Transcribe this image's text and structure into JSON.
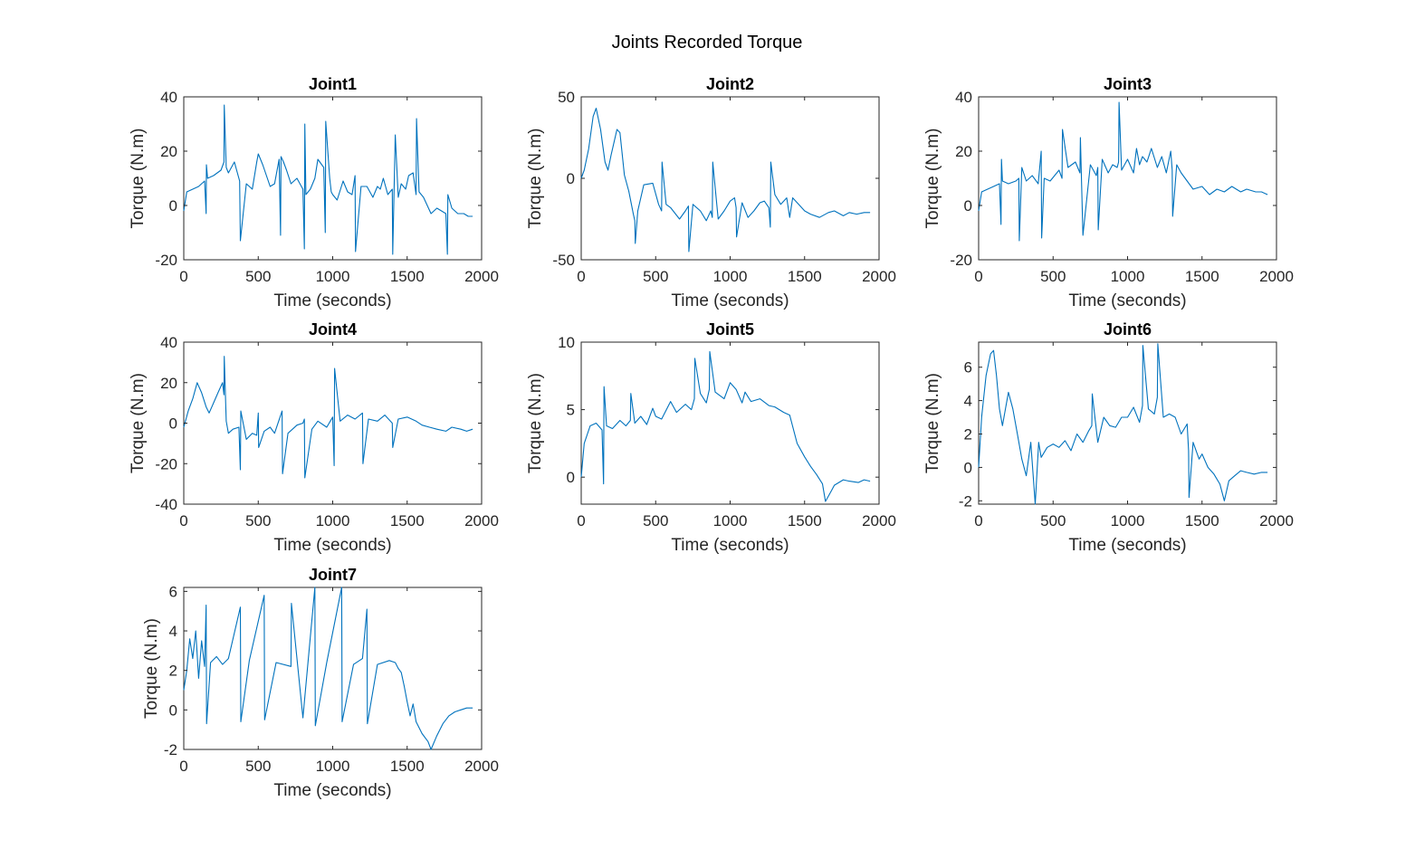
{
  "figure": {
    "title": "Joints Recorded Torque",
    "trace_color": "#0072bd",
    "axis_color": "#262626"
  },
  "chart_data": [
    {
      "type": "line",
      "title": "Joint1",
      "xlabel": "Time (seconds)",
      "ylabel": "Torque (N.m)",
      "xlim": [
        0,
        2000
      ],
      "ylim": [
        -20,
        40
      ],
      "xticks": [
        0,
        500,
        1000,
        1500,
        2000
      ],
      "yticks": [
        -20,
        0,
        20,
        40
      ],
      "series": [
        {
          "x": [
            0,
            20,
            60,
            100,
            140,
            150,
            152,
            160,
            200,
            250,
            270,
            272,
            285,
            300,
            340,
            375,
            380,
            420,
            460,
            490,
            500,
            530,
            580,
            610,
            640,
            650,
            653,
            670,
            690,
            720,
            760,
            800,
            810,
            813,
            820,
            850,
            880,
            900,
            940,
            950,
            953,
            980,
            990,
            1000,
            1030,
            1070,
            1100,
            1130,
            1150,
            1153,
            1190,
            1230,
            1270,
            1300,
            1320,
            1340,
            1370,
            1400,
            1403,
            1420,
            1440,
            1460,
            1490,
            1510,
            1540,
            1560,
            1563,
            1580,
            1610,
            1660,
            1700,
            1730,
            1760,
            1770,
            1773,
            1800,
            1840,
            1880,
            1910,
            1940
          ],
          "y": [
            -2,
            5,
            6,
            7,
            9,
            -3,
            15,
            10,
            11,
            13,
            16,
            37,
            14,
            12,
            16,
            9,
            -13,
            8,
            6,
            16,
            19,
            15,
            7,
            8,
            17,
            -11,
            18,
            16,
            13,
            8,
            10,
            6,
            -16,
            30,
            4,
            6,
            10,
            17,
            14,
            -10,
            31,
            10,
            5,
            4,
            2,
            9,
            5,
            4,
            11,
            -17,
            7,
            7,
            3,
            7,
            6,
            10,
            4,
            6,
            -18,
            26,
            3,
            8,
            6,
            11,
            12,
            4,
            32,
            5,
            3,
            -3,
            -1,
            -2,
            -3,
            -18,
            4,
            -1,
            -3,
            -3,
            -4,
            -4
          ]
        }
      ]
    },
    {
      "type": "line",
      "title": "Joint2",
      "xlabel": "Time (seconds)",
      "ylabel": "Torque (N.m)",
      "xlim": [
        0,
        2000
      ],
      "ylim": [
        -50,
        50
      ],
      "xticks": [
        0,
        500,
        1000,
        1500,
        2000
      ],
      "yticks": [
        -50,
        0,
        50
      ],
      "series": [
        {
          "x": [
            0,
            20,
            50,
            80,
            100,
            130,
            160,
            180,
            200,
            240,
            260,
            290,
            320,
            350,
            360,
            363,
            380,
            420,
            480,
            520,
            540,
            543,
            570,
            600,
            660,
            700,
            720,
            723,
            750,
            800,
            840,
            870,
            880,
            883,
            920,
            960,
            1000,
            1030,
            1040,
            1043,
            1080,
            1120,
            1160,
            1200,
            1230,
            1260,
            1270,
            1273,
            1300,
            1340,
            1380,
            1400,
            1420,
            1460,
            1500,
            1540,
            1600,
            1660,
            1700,
            1760,
            1800,
            1850,
            1900,
            1940
          ],
          "y": [
            0,
            5,
            18,
            38,
            43,
            30,
            10,
            5,
            14,
            30,
            28,
            2,
            -8,
            -22,
            -26,
            -40,
            -20,
            -4,
            -3,
            -16,
            -20,
            10,
            -16,
            -18,
            -25,
            -20,
            -17,
            -45,
            -16,
            -20,
            -26,
            -20,
            -24,
            10,
            -25,
            -20,
            -14,
            -12,
            -18,
            -36,
            -15,
            -24,
            -20,
            -15,
            -14,
            -18,
            -30,
            10,
            -10,
            -16,
            -12,
            -24,
            -12,
            -16,
            -20,
            -22,
            -24,
            -21,
            -20,
            -23,
            -21,
            -22,
            -21,
            -21
          ]
        }
      ]
    },
    {
      "type": "line",
      "title": "Joint3",
      "xlabel": "Time (seconds)",
      "ylabel": "Torque (N.m)",
      "xlim": [
        0,
        2000
      ],
      "ylim": [
        -20,
        40
      ],
      "xticks": [
        0,
        500,
        1000,
        1500,
        2000
      ],
      "yticks": [
        -20,
        0,
        20,
        40
      ],
      "series": [
        {
          "x": [
            0,
            20,
            60,
            100,
            140,
            150,
            153,
            160,
            200,
            250,
            270,
            273,
            290,
            320,
            360,
            400,
            420,
            423,
            440,
            480,
            540,
            560,
            563,
            600,
            650,
            680,
            683,
            700,
            750,
            790,
            800,
            803,
            830,
            870,
            900,
            930,
            940,
            943,
            960,
            1000,
            1040,
            1060,
            1080,
            1100,
            1130,
            1160,
            1200,
            1230,
            1260,
            1290,
            1300,
            1303,
            1330,
            1360,
            1400,
            1440,
            1500,
            1550,
            1600,
            1650,
            1700,
            1760,
            1800,
            1860,
            1900,
            1940
          ],
          "y": [
            -2,
            5,
            6,
            7,
            8,
            -7,
            17,
            9,
            8,
            9,
            10,
            -13,
            14,
            9,
            11,
            8,
            20,
            -12,
            10,
            9,
            13,
            10,
            28,
            14,
            16,
            12,
            25,
            -11,
            15,
            11,
            14,
            -9,
            17,
            12,
            15,
            14,
            16,
            38,
            13,
            17,
            12,
            21,
            15,
            18,
            16,
            21,
            14,
            18,
            12,
            20,
            13,
            -4,
            15,
            12,
            9,
            6,
            7,
            4,
            6,
            5,
            7,
            5,
            6,
            5,
            5,
            4
          ]
        }
      ]
    },
    {
      "type": "line",
      "title": "Joint4",
      "xlabel": "Time (seconds)",
      "ylabel": "Torque (N.m)",
      "xlim": [
        0,
        2000
      ],
      "ylim": [
        -40,
        40
      ],
      "xticks": [
        0,
        500,
        1000,
        1500,
        2000
      ],
      "yticks": [
        -40,
        -20,
        0,
        20,
        40
      ],
      "series": [
        {
          "x": [
            0,
            30,
            60,
            90,
            120,
            150,
            170,
            200,
            230,
            260,
            270,
            272,
            285,
            300,
            330,
            370,
            380,
            383,
            420,
            460,
            490,
            500,
            503,
            540,
            580,
            610,
            660,
            663,
            700,
            760,
            800,
            810,
            813,
            860,
            900,
            960,
            1000,
            1010,
            1013,
            1050,
            1100,
            1150,
            1200,
            1203,
            1240,
            1300,
            1350,
            1400,
            1403,
            1440,
            1500,
            1560,
            1600,
            1650,
            1700,
            1760,
            1800,
            1860,
            1900,
            1940
          ],
          "y": [
            -2,
            6,
            12,
            20,
            15,
            8,
            5,
            10,
            15,
            20,
            14,
            33,
            1,
            -5,
            -3,
            -2,
            -23,
            6,
            -8,
            -5,
            -6,
            5,
            -12,
            -4,
            -2,
            -5,
            6,
            -25,
            -5,
            -1,
            0,
            2,
            -27,
            -3,
            1,
            -2,
            3,
            -21,
            27,
            1,
            4,
            2,
            5,
            -20,
            2,
            1,
            4,
            0,
            -12,
            2,
            3,
            1,
            -1,
            -2,
            -3,
            -4,
            -2,
            -3,
            -4,
            -3
          ]
        }
      ]
    },
    {
      "type": "line",
      "title": "Joint5",
      "xlabel": "Time (seconds)",
      "ylabel": "Torque (N.m)",
      "xlim": [
        0,
        2000
      ],
      "ylim": [
        -2,
        10
      ],
      "xticks": [
        0,
        500,
        1000,
        1500,
        2000
      ],
      "yticks": [
        0,
        5,
        10
      ],
      "series": [
        {
          "x": [
            0,
            20,
            60,
            100,
            140,
            150,
            153,
            170,
            210,
            260,
            300,
            330,
            333,
            360,
            400,
            440,
            480,
            500,
            540,
            600,
            640,
            700,
            740,
            760,
            763,
            800,
            840,
            860,
            863,
            900,
            960,
            1000,
            1040,
            1080,
            1100,
            1140,
            1200,
            1260,
            1300,
            1360,
            1400,
            1450,
            1500,
            1540,
            1580,
            1620,
            1640,
            1680,
            1700,
            1760,
            1800,
            1860,
            1900,
            1940
          ],
          "y": [
            0,
            2.5,
            3.8,
            4,
            3.5,
            -0.5,
            6.7,
            3.8,
            3.6,
            4.2,
            3.8,
            4.2,
            6.2,
            4,
            4.5,
            3.9,
            5.1,
            4.5,
            4.3,
            5.6,
            4.8,
            5.4,
            5,
            5.8,
            8.8,
            6.2,
            5.5,
            6.5,
            9.3,
            6.3,
            5.8,
            7,
            6.5,
            5.5,
            6.3,
            5.6,
            5.8,
            5.3,
            5.2,
            4.8,
            4.6,
            2.5,
            1.5,
            0.8,
            0.2,
            -0.5,
            -1.8,
            -1,
            -0.6,
            -0.2,
            -0.3,
            -0.4,
            -0.2,
            -0.3
          ]
        }
      ]
    },
    {
      "type": "line",
      "title": "Joint6",
      "xlabel": "Time (seconds)",
      "ylabel": "Torque (N.m)",
      "xlim": [
        0,
        2000
      ],
      "ylim": [
        -2.2,
        7.5
      ],
      "xticks": [
        0,
        500,
        1000,
        1500,
        2000
      ],
      "yticks": [
        -2,
        0,
        2,
        4,
        6
      ],
      "series": [
        {
          "x": [
            0,
            20,
            50,
            80,
            100,
            120,
            140,
            160,
            180,
            200,
            230,
            260,
            290,
            320,
            350,
            380,
            400,
            403,
            420,
            460,
            500,
            540,
            580,
            620,
            660,
            700,
            740,
            760,
            763,
            800,
            840,
            880,
            920,
            960,
            1000,
            1040,
            1080,
            1100,
            1103,
            1140,
            1180,
            1200,
            1203,
            1240,
            1280,
            1320,
            1360,
            1400,
            1410,
            1413,
            1440,
            1480,
            1500,
            1540,
            1580,
            1620,
            1650,
            1680,
            1720,
            1760,
            1800,
            1850,
            1900,
            1940
          ],
          "y": [
            0,
            3,
            5.5,
            6.8,
            7,
            5.5,
            3.5,
            2.5,
            3.5,
            4.5,
            3.5,
            2,
            0.5,
            -0.5,
            1.5,
            -2.2,
            1,
            1.5,
            0.6,
            1.2,
            1.4,
            1.2,
            1.6,
            1,
            2,
            1.5,
            2.2,
            2.5,
            4.4,
            1.5,
            3,
            2.5,
            2.4,
            3,
            3,
            3.6,
            2.7,
            3.7,
            7.3,
            3.5,
            3.2,
            4.2,
            7.4,
            3,
            3.2,
            3,
            2,
            2.6,
            1,
            -1.8,
            1.5,
            0.5,
            0.8,
            0,
            -0.4,
            -1,
            -2,
            -0.8,
            -0.5,
            -0.2,
            -0.3,
            -0.4,
            -0.3,
            -0.3
          ]
        }
      ]
    },
    {
      "type": "line",
      "title": "Joint7",
      "xlabel": "Time (seconds)",
      "ylabel": "Torque (N.m)",
      "xlim": [
        0,
        2000
      ],
      "ylim": [
        -2,
        6.2
      ],
      "xticks": [
        0,
        500,
        1000,
        1500,
        2000
      ],
      "yticks": [
        -2,
        0,
        2,
        4,
        6
      ],
      "series": [
        {
          "x": [
            0,
            20,
            40,
            60,
            80,
            100,
            120,
            140,
            150,
            153,
            180,
            220,
            260,
            300,
            380,
            383,
            440,
            540,
            543,
            620,
            720,
            723,
            800,
            880,
            883,
            960,
            1060,
            1063,
            1140,
            1200,
            1230,
            1233,
            1300,
            1380,
            1420,
            1440,
            1460,
            1480,
            1500,
            1520,
            1540,
            1560,
            1600,
            1640,
            1660,
            1700,
            1740,
            1780,
            1820,
            1860,
            1900,
            1940
          ],
          "y": [
            1,
            2,
            3.6,
            2.6,
            4,
            1.6,
            3.5,
            2.2,
            5.3,
            -0.7,
            2.4,
            2.7,
            2.3,
            2.6,
            5.2,
            -0.6,
            2.5,
            5.8,
            -0.5,
            2.4,
            2.2,
            5.4,
            -0.4,
            6.2,
            -0.8,
            2.4,
            6.2,
            -0.6,
            2.3,
            2.6,
            5.1,
            -0.7,
            2.3,
            2.5,
            2.4,
            2.1,
            1.9,
            1.2,
            0.4,
            -0.3,
            0.3,
            -0.6,
            -1.2,
            -1.6,
            -2,
            -1.3,
            -0.7,
            -0.3,
            -0.1,
            0,
            0.1,
            0.1
          ]
        }
      ]
    }
  ]
}
